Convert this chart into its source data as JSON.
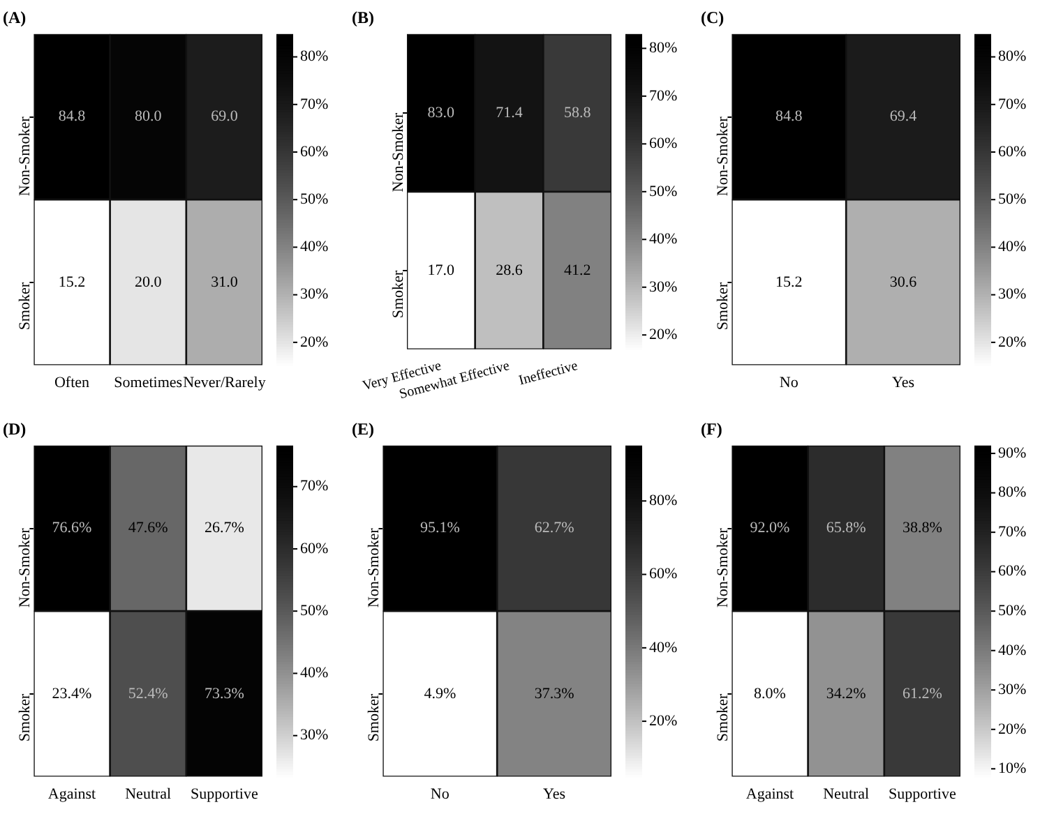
{
  "chart_data": [
    {
      "type": "heatmap",
      "title": "(A)",
      "categories": [
        "Often",
        "Sometimes",
        "Never/Rarely"
      ],
      "y_categories": [
        "Non-Smoker",
        "Smoker"
      ],
      "cells": [
        [
          84.8,
          80.0,
          69.0
        ],
        [
          15.2,
          20.0,
          31.0
        ]
      ],
      "cell_labels": [
        [
          "84.8",
          "80.0",
          "69.0"
        ],
        [
          "15.2",
          "20.0",
          "31.0"
        ]
      ],
      "clim": [
        15.2,
        84.8
      ],
      "cticks": [
        {
          "value": 20,
          "label": "20%"
        },
        {
          "value": 30,
          "label": "30%"
        },
        {
          "value": 40,
          "label": "40%"
        },
        {
          "value": 50,
          "label": "50%"
        },
        {
          "value": 60,
          "label": "60%"
        },
        {
          "value": 70,
          "label": "70%"
        },
        {
          "value": 80,
          "label": "80%"
        }
      ]
    },
    {
      "type": "heatmap",
      "title": "(B)",
      "categories": [
        "Very Effective",
        "Somewhat Effective",
        "Ineffective"
      ],
      "y_categories": [
        "Non-Smoker",
        "Smoker"
      ],
      "cells": [
        [
          83.0,
          71.4,
          58.8
        ],
        [
          17.0,
          28.6,
          41.2
        ]
      ],
      "cell_labels": [
        [
          "83.0",
          "71.4",
          "58.8"
        ],
        [
          "17.0",
          "28.6",
          "41.2"
        ]
      ],
      "clim": [
        17.0,
        83.0
      ],
      "cticks": [
        {
          "value": 20,
          "label": "20%"
        },
        {
          "value": 30,
          "label": "30%"
        },
        {
          "value": 40,
          "label": "40%"
        },
        {
          "value": 50,
          "label": "50%"
        },
        {
          "value": 60,
          "label": "60%"
        },
        {
          "value": 70,
          "label": "70%"
        },
        {
          "value": 80,
          "label": "80%"
        }
      ]
    },
    {
      "type": "heatmap",
      "title": "(C)",
      "categories": [
        "No",
        "Yes"
      ],
      "y_categories": [
        "Non-Smoker",
        "Smoker"
      ],
      "cells": [
        [
          84.8,
          69.4
        ],
        [
          15.2,
          30.6
        ]
      ],
      "cell_labels": [
        [
          "84.8",
          "69.4"
        ],
        [
          "15.2",
          "30.6"
        ]
      ],
      "clim": [
        15.2,
        84.8
      ],
      "cticks": [
        {
          "value": 20,
          "label": "20%"
        },
        {
          "value": 30,
          "label": "30%"
        },
        {
          "value": 40,
          "label": "40%"
        },
        {
          "value": 50,
          "label": "50%"
        },
        {
          "value": 60,
          "label": "60%"
        },
        {
          "value": 70,
          "label": "70%"
        },
        {
          "value": 80,
          "label": "80%"
        }
      ]
    },
    {
      "type": "heatmap",
      "title": "(D)",
      "categories": [
        "Against",
        "Neutral",
        "Supportive"
      ],
      "y_categories": [
        "Non-Smoker",
        "Smoker"
      ],
      "cells": [
        [
          76.6,
          47.6,
          26.7
        ],
        [
          23.4,
          52.4,
          73.3
        ]
      ],
      "cell_labels": [
        [
          "76.6%",
          "47.6%",
          "26.7%"
        ],
        [
          "23.4%",
          "52.4%",
          "73.3%"
        ]
      ],
      "clim": [
        23.4,
        76.6
      ],
      "cticks": [
        {
          "value": 30,
          "label": "30%"
        },
        {
          "value": 40,
          "label": "40%"
        },
        {
          "value": 50,
          "label": "50%"
        },
        {
          "value": 60,
          "label": "60%"
        },
        {
          "value": 70,
          "label": "70%"
        }
      ]
    },
    {
      "type": "heatmap",
      "title": "(E)",
      "categories": [
        "No",
        "Yes"
      ],
      "y_categories": [
        "Non-Smoker",
        "Smoker"
      ],
      "cells": [
        [
          95.1,
          62.7
        ],
        [
          4.9,
          37.3
        ]
      ],
      "cell_labels": [
        [
          "95.1%",
          "62.7%"
        ],
        [
          "4.9%",
          "37.3%"
        ]
      ],
      "clim": [
        4.9,
        95.1
      ],
      "cticks": [
        {
          "value": 20,
          "label": "20%"
        },
        {
          "value": 40,
          "label": "40%"
        },
        {
          "value": 60,
          "label": "60%"
        },
        {
          "value": 80,
          "label": "80%"
        }
      ]
    },
    {
      "type": "heatmap",
      "title": "(F)",
      "categories": [
        "Against",
        "Neutral",
        "Supportive"
      ],
      "y_categories": [
        "Non-Smoker",
        "Smoker"
      ],
      "cells": [
        [
          92.0,
          65.8,
          38.8
        ],
        [
          8.0,
          34.2,
          61.2
        ]
      ],
      "cell_labels": [
        [
          "92.0%",
          "65.8%",
          "38.8%"
        ],
        [
          "8.0%",
          "34.2%",
          "61.2%"
        ]
      ],
      "clim": [
        8.0,
        92.0
      ],
      "cticks": [
        {
          "value": 10,
          "label": "10%"
        },
        {
          "value": 20,
          "label": "20%"
        },
        {
          "value": 30,
          "label": "30%"
        },
        {
          "value": 40,
          "label": "40%"
        },
        {
          "value": 50,
          "label": "50%"
        },
        {
          "value": 60,
          "label": "60%"
        },
        {
          "value": 70,
          "label": "70%"
        },
        {
          "value": 80,
          "label": "80%"
        },
        {
          "value": 90,
          "label": "90%"
        }
      ]
    }
  ]
}
